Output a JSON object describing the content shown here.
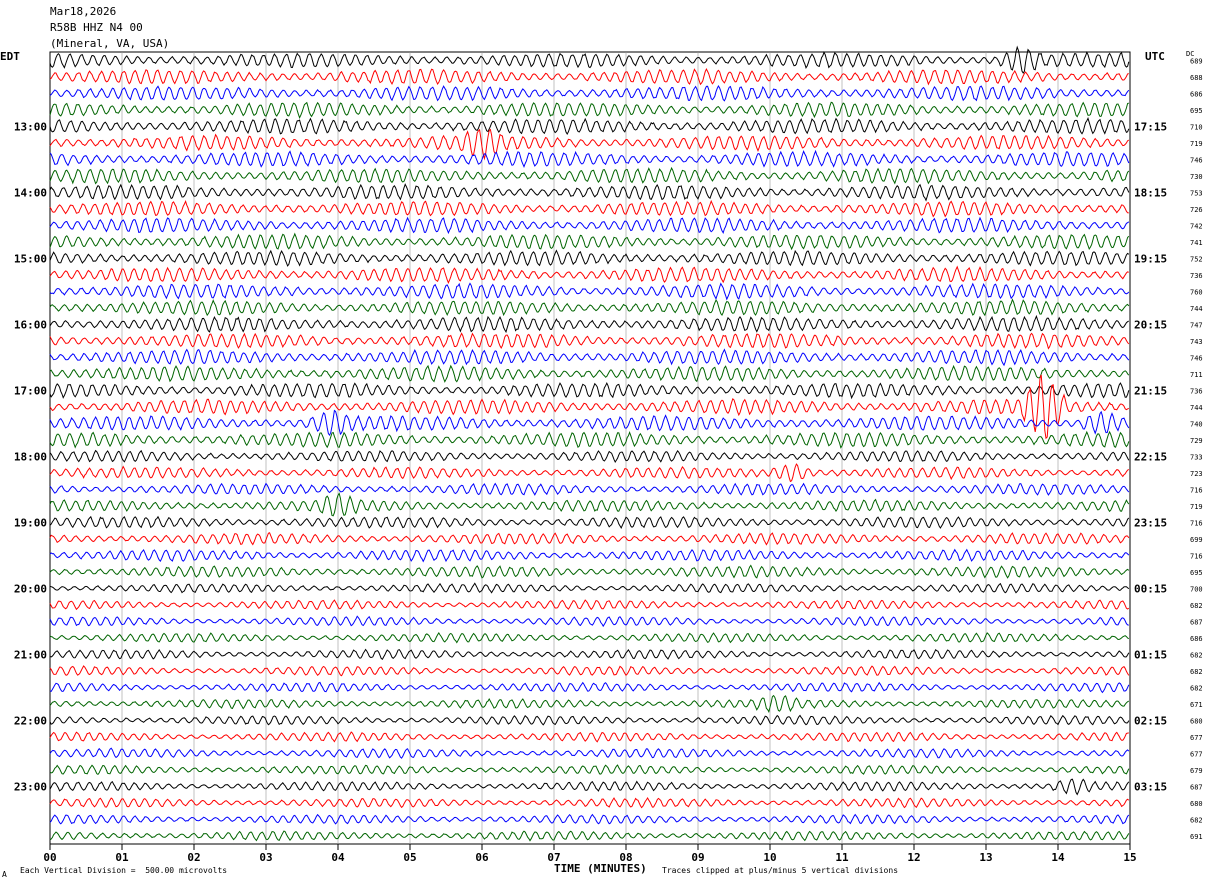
{
  "header": {
    "date": "Mar18,2026",
    "station": "R58B HHZ N4 00",
    "location": "(Mineral, VA, USA)"
  },
  "left_tz": "EDT",
  "right_tz": "UTC",
  "dc_label": "DC",
  "footer": {
    "scale_note": "Each Vertical Division =  500.00 microvolts",
    "clip_note": "Traces clipped at plus/minus 5 vertical divisions",
    "corner_mark": "A"
  },
  "colors": {
    "trace_cycle": [
      "#000000",
      "#ff0000",
      "#0000ff",
      "#006400"
    ],
    "grid": "#999999"
  },
  "chart_data": {
    "type": "line",
    "xlabel": "TIME (MINUTES)",
    "xlim": [
      0,
      15
    ],
    "x_ticks": [
      "00",
      "01",
      "02",
      "03",
      "04",
      "05",
      "06",
      "07",
      "08",
      "09",
      "10",
      "11",
      "12",
      "13",
      "14",
      "15"
    ],
    "rows_per_hour": 4,
    "row_count": 48,
    "left_hour_labels": [
      "13:00",
      "14:00",
      "15:00",
      "16:00",
      "17:00",
      "18:00",
      "19:00",
      "20:00",
      "21:00",
      "22:00",
      "23:00"
    ],
    "right_hour_labels": [
      "17:15",
      "18:15",
      "19:15",
      "20:15",
      "21:15",
      "22:15",
      "23:15",
      "00:15",
      "01:15",
      "02:15",
      "03:15"
    ],
    "dc_offsets": [
      689,
      688,
      686,
      695,
      710,
      719,
      746,
      730,
      753,
      726,
      742,
      741,
      752,
      736,
      760,
      744,
      747,
      743,
      746,
      711,
      736,
      744,
      740,
      729,
      733,
      723,
      716,
      719,
      716,
      699,
      716,
      695,
      700,
      682,
      687,
      686,
      682,
      682,
      682,
      671,
      680,
      677,
      677,
      679,
      687,
      680,
      682,
      691
    ],
    "events": [
      {
        "row": 0,
        "minute": 13.5,
        "note": "burst"
      },
      {
        "row": 5,
        "minute": 6.0,
        "note": "burst"
      },
      {
        "row": 21,
        "minute": 13.8,
        "note": "large burst"
      },
      {
        "row": 22,
        "minute": 3.9,
        "note": "burst"
      },
      {
        "row": 22,
        "minute": 14.6,
        "note": "burst"
      },
      {
        "row": 25,
        "minute": 10.3,
        "note": "burst"
      },
      {
        "row": 27,
        "minute": 4.0,
        "note": "noise"
      },
      {
        "row": 39,
        "minute": 10.1,
        "note": "burst"
      },
      {
        "row": 44,
        "minute": 14.2,
        "note": "burst"
      }
    ]
  }
}
